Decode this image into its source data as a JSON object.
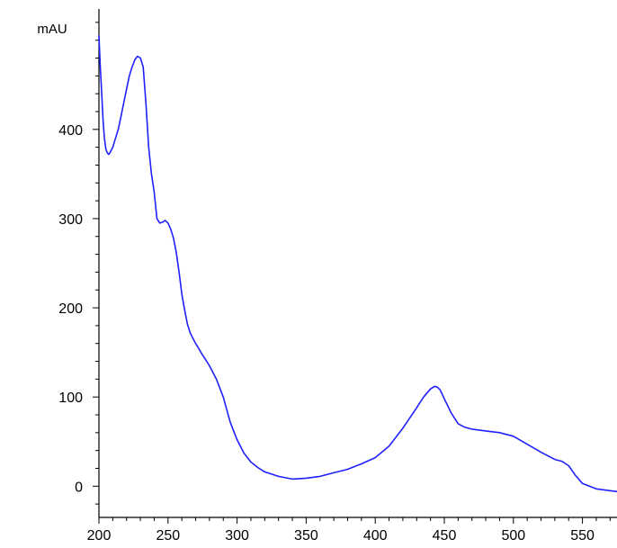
{
  "chart_data": {
    "type": "line",
    "title": "",
    "xlabel": "",
    "ylabel": "mAU",
    "xlim": [
      200,
      575
    ],
    "ylim": [
      -35,
      535
    ],
    "x_ticks": [
      200,
      250,
      300,
      350,
      400,
      450,
      500,
      550
    ],
    "y_ticks": [
      0,
      100,
      200,
      300,
      400
    ],
    "x_minor_step": 10,
    "y_minor_step": 20,
    "grid": false,
    "legend": "none",
    "line_color": "#2020ff",
    "series": [
      {
        "x": [
          200,
          201,
          202,
          203,
          204,
          205,
          206,
          207,
          208,
          210,
          212,
          214,
          216,
          218,
          220,
          222,
          224,
          226,
          228,
          230,
          232,
          234,
          236,
          238,
          240,
          242,
          244,
          246,
          248,
          250,
          252,
          254,
          256,
          258,
          260,
          262,
          264,
          266,
          268,
          270,
          272,
          275,
          278,
          280,
          285,
          290,
          295,
          300,
          305,
          310,
          315,
          320,
          330,
          340,
          350,
          360,
          370,
          380,
          390,
          400,
          410,
          420,
          430,
          435,
          440,
          443,
          445,
          447,
          450,
          455,
          460,
          465,
          470,
          480,
          490,
          500,
          510,
          520,
          530,
          535,
          540,
          545,
          550,
          560,
          570,
          575
        ],
        "y": [
          505,
          470,
          440,
          410,
          390,
          378,
          374,
          372,
          374,
          380,
          390,
          400,
          415,
          430,
          445,
          460,
          470,
          478,
          482,
          480,
          470,
          430,
          380,
          350,
          330,
          300,
          295,
          296,
          298,
          295,
          288,
          278,
          262,
          240,
          215,
          198,
          182,
          172,
          166,
          160,
          155,
          147,
          140,
          135,
          120,
          100,
          72,
          52,
          37,
          27,
          21,
          16,
          11,
          8,
          9,
          11,
          15,
          19,
          25,
          32,
          45,
          65,
          88,
          100,
          109,
          112,
          111,
          108,
          98,
          82,
          70,
          66,
          64,
          62,
          60,
          56,
          47,
          38,
          30,
          28,
          23,
          12,
          3,
          -3,
          -5,
          -6
        ]
      }
    ]
  }
}
